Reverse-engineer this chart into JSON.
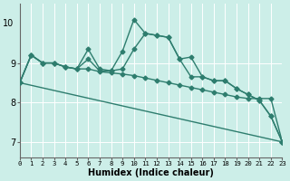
{
  "xlabel": "Humidex (Indice chaleur)",
  "background_color": "#cceee8",
  "grid_color": "#ffffff",
  "line_color": "#2e7d6e",
  "x_ticks": [
    0,
    1,
    2,
    3,
    4,
    5,
    6,
    7,
    8,
    9,
    10,
    11,
    12,
    13,
    14,
    15,
    16,
    17,
    18,
    19,
    20,
    21,
    22,
    23
  ],
  "y_ticks": [
    7,
    8,
    9
  ],
  "y_top_label": "10",
  "ylim": [
    6.6,
    10.5
  ],
  "xlim": [
    0,
    23
  ],
  "series": [
    {
      "x": [
        0,
        1,
        2,
        3,
        4,
        5,
        6,
        7,
        8,
        9,
        10,
        11,
        12,
        13,
        14,
        15,
        16,
        17,
        18,
        19,
        20,
        21,
        22,
        23
      ],
      "y": [
        8.5,
        9.2,
        9.0,
        9.0,
        8.9,
        8.85,
        9.35,
        8.85,
        8.8,
        9.3,
        10.1,
        9.75,
        9.7,
        9.65,
        9.1,
        9.15,
        8.65,
        8.55,
        8.55,
        8.35,
        8.2,
        8.05,
        7.65,
        7.0
      ],
      "has_markers": true
    },
    {
      "x": [
        0,
        1,
        2,
        3,
        4,
        5,
        6,
        7,
        8,
        9,
        10,
        11,
        12,
        13,
        14,
        15,
        16,
        17,
        18,
        19,
        20,
        21,
        22,
        23
      ],
      "y": [
        8.5,
        9.2,
        9.0,
        9.0,
        8.9,
        8.85,
        9.1,
        8.8,
        8.8,
        8.85,
        9.35,
        9.75,
        9.7,
        9.65,
        9.1,
        8.65,
        8.65,
        8.55,
        8.55,
        8.35,
        8.2,
        8.05,
        7.65,
        7.0
      ],
      "has_markers": true
    },
    {
      "x": [
        0,
        23
      ],
      "y": [
        8.5,
        7.0
      ],
      "has_markers": false
    },
    {
      "x": [
        0,
        1,
        2,
        3,
        4,
        5,
        6,
        7,
        8,
        9,
        10,
        11,
        12,
        13,
        14,
        15,
        16,
        17,
        18,
        19,
        20,
        21,
        22,
        23
      ],
      "y": [
        8.5,
        9.2,
        9.0,
        9.0,
        8.9,
        8.85,
        8.85,
        8.78,
        8.75,
        8.72,
        8.68,
        8.62,
        8.56,
        8.5,
        8.44,
        8.38,
        8.32,
        8.26,
        8.2,
        8.14,
        8.1,
        8.1,
        8.1,
        7.0
      ],
      "has_markers": true
    }
  ],
  "marker": "D",
  "markersize": 2.5,
  "linewidth": 1.0
}
